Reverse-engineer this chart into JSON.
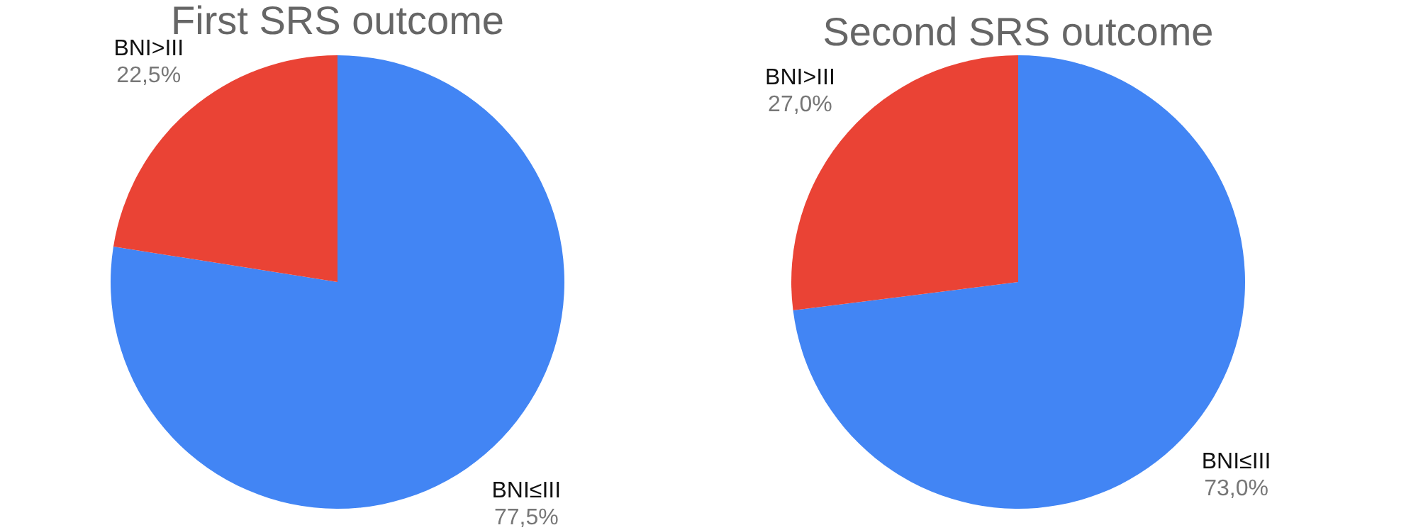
{
  "chart_data": [
    {
      "type": "pie",
      "title": "First SRS outcome",
      "categories": [
        "BNI≤III",
        "BNI>III"
      ],
      "values": [
        77.5,
        22.5
      ],
      "colors": [
        "#4285f4",
        "#ea4335"
      ],
      "value_labels": [
        "77,5%",
        "22,5%"
      ],
      "legend": false
    },
    {
      "type": "pie",
      "title": "Second SRS outcome",
      "categories": [
        "BNI≤III",
        "BNI>III"
      ],
      "values": [
        73.0,
        27.0
      ],
      "colors": [
        "#4285f4",
        "#ea4335"
      ],
      "value_labels": [
        "73,0%",
        "27,0%"
      ],
      "legend": false
    }
  ]
}
